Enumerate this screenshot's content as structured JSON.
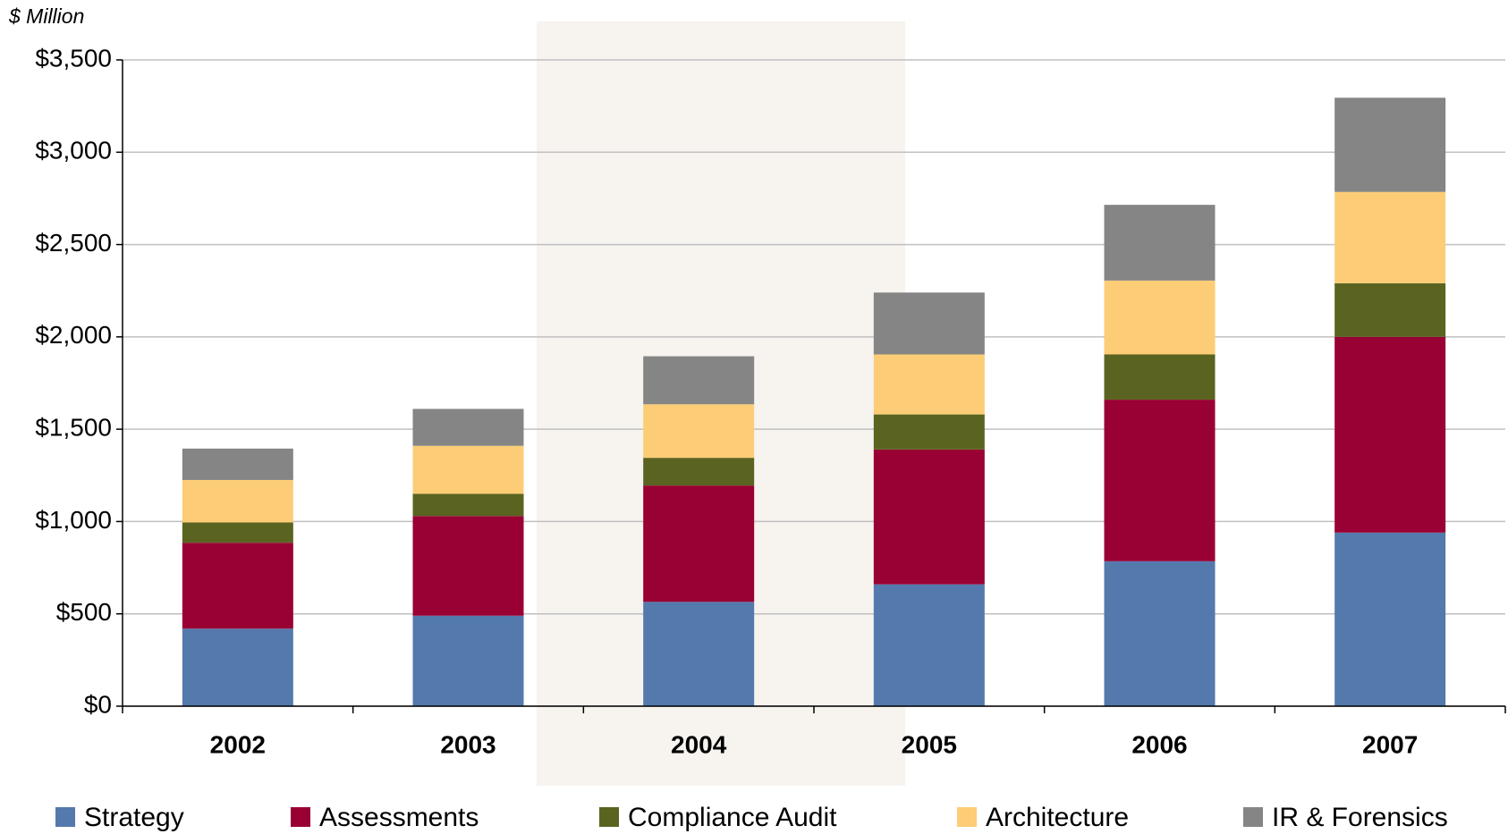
{
  "chart_data": {
    "type": "stacked_bar",
    "ylabel": "$ Million",
    "categories": [
      "2002",
      "2003",
      "2004",
      "2005",
      "2006",
      "2007"
    ],
    "series": [
      {
        "name": "Strategy",
        "color": "#5479ac",
        "values": [
          420,
          490,
          565,
          660,
          785,
          940
        ]
      },
      {
        "name": "Assessments",
        "color": "#990033",
        "values": [
          465,
          540,
          630,
          730,
          875,
          1060
        ]
      },
      {
        "name": "Compliance Audit",
        "color": "#5a6420",
        "values": [
          110,
          120,
          150,
          190,
          245,
          290
        ]
      },
      {
        "name": "Architecture",
        "color": "#fccd76",
        "values": [
          230,
          260,
          290,
          325,
          400,
          495
        ]
      },
      {
        "name": "IR & Forensics",
        "color": "#858585",
        "values": [
          170,
          200,
          260,
          335,
          410,
          510
        ]
      }
    ],
    "ylim": [
      0,
      3500
    ],
    "yticks": [
      {
        "value": 0,
        "label": "$0"
      },
      {
        "value": 500,
        "label": "$500"
      },
      {
        "value": 1000,
        "label": "$1,000"
      },
      {
        "value": 1500,
        "label": "$1,500"
      },
      {
        "value": 2000,
        "label": "$2,000"
      },
      {
        "value": 2500,
        "label": "$2,500"
      },
      {
        "value": 3000,
        "label": "$3,000"
      },
      {
        "value": 3500,
        "label": "$3,500"
      }
    ],
    "grid": true
  }
}
